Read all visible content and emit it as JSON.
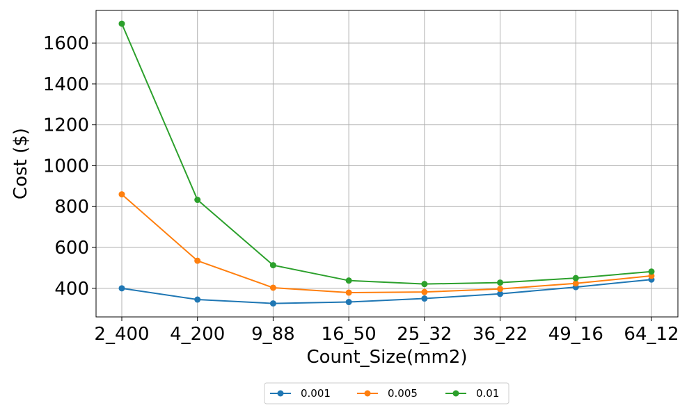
{
  "chart_data": {
    "type": "line",
    "xlabel": "Count_Size(mm2)",
    "ylabel": "Cost ($)",
    "categories": [
      "2_400",
      "4_200",
      "9_88",
      "16_50",
      "25_32",
      "36_22",
      "49_16",
      "64_12"
    ],
    "ylim": [
      260,
      1760
    ],
    "yticks": [
      400,
      600,
      800,
      1000,
      1200,
      1400,
      1600
    ],
    "grid": true,
    "legend_position": "bottom-center",
    "series": [
      {
        "name": "0.001",
        "color": "#1f77b4",
        "values": [
          400,
          345,
          326,
          333,
          350,
          373,
          406,
          443
        ]
      },
      {
        "name": "0.005",
        "color": "#ff7f0e",
        "values": [
          860,
          535,
          403,
          379,
          382,
          397,
          424,
          461
        ]
      },
      {
        "name": "0.01",
        "color": "#2ca02c",
        "values": [
          1695,
          833,
          513,
          438,
          421,
          428,
          450,
          482
        ]
      }
    ]
  }
}
